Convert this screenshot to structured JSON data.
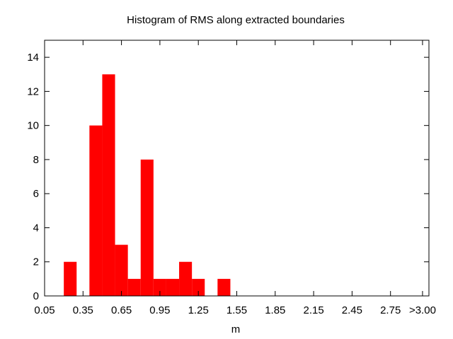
{
  "chart_data": {
    "type": "bar",
    "title": "Histogram of RMS along extracted boundaries",
    "xlabel": "m",
    "ylabel": "",
    "bar_color": "#ff0000",
    "xlim": [
      0.05,
      3.05
    ],
    "ylim": [
      0,
      15
    ],
    "bin_width": 0.1,
    "x_ticks": [
      {
        "value": 0.05,
        "label": "0.05"
      },
      {
        "value": 0.35,
        "label": "0.35"
      },
      {
        "value": 0.65,
        "label": "0.65"
      },
      {
        "value": 0.95,
        "label": "0.95"
      },
      {
        "value": 1.25,
        "label": "1.25"
      },
      {
        "value": 1.55,
        "label": "1.55"
      },
      {
        "value": 1.85,
        "label": "1.85"
      },
      {
        "value": 2.15,
        "label": "2.15"
      },
      {
        "value": 2.45,
        "label": "2.45"
      },
      {
        "value": 2.75,
        "label": "2.75"
      },
      {
        "value": 3.0,
        "label": ">3.00"
      }
    ],
    "y_ticks": [
      0,
      2,
      4,
      6,
      8,
      10,
      12,
      14
    ],
    "x": [
      0.25,
      0.45,
      0.55,
      0.65,
      0.75,
      0.85,
      0.95,
      1.05,
      1.15,
      1.25,
      1.45
    ],
    "values": [
      2,
      10,
      13,
      3,
      1,
      8,
      1,
      1,
      2,
      1,
      1
    ],
    "grid": false
  }
}
